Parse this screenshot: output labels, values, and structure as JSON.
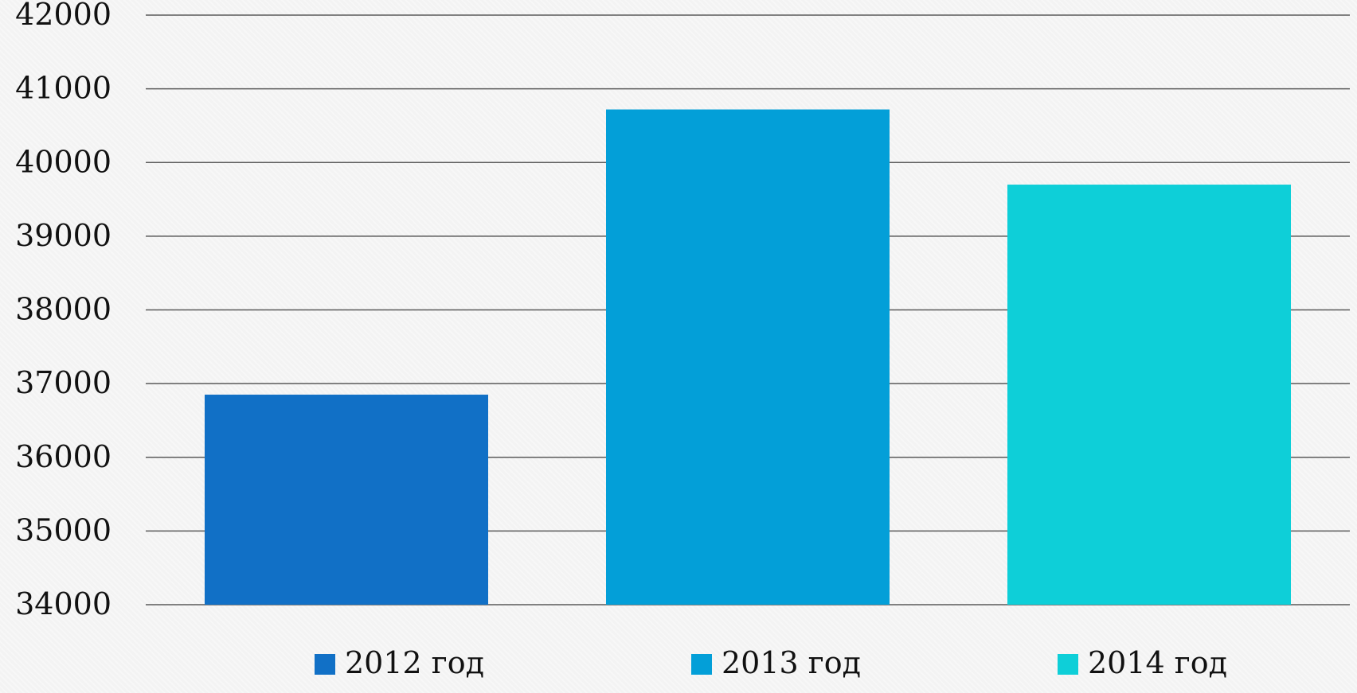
{
  "chart_data": {
    "type": "bar",
    "categories": [
      "2012 год",
      "2013 год",
      "2014 год"
    ],
    "series": [
      {
        "name": "2012 год",
        "value": 36850,
        "color": "#1170c6"
      },
      {
        "name": "2013 год",
        "value": 40720,
        "color": "#039fd8"
      },
      {
        "name": "2014 год",
        "value": 39700,
        "color": "#0ecfd8"
      }
    ],
    "ylim": [
      34000,
      42000
    ],
    "yticks": [
      "34000",
      "35000",
      "36000",
      "37000",
      "38000",
      "39000",
      "40000",
      "41000",
      "42000"
    ],
    "grid": true,
    "legend_position": "bottom",
    "title": "",
    "xlabel": "",
    "ylabel": ""
  }
}
